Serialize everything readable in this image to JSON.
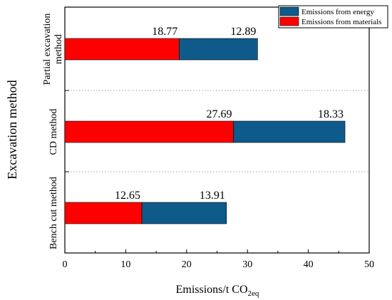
{
  "chart_data": {
    "type": "bar",
    "orientation": "horizontal",
    "stacked": true,
    "categories": [
      "Partial excavation method",
      "CD method",
      "Bench cut method"
    ],
    "category_label_lines": [
      [
        "Partial excavation",
        "method"
      ],
      [
        "CD method"
      ],
      [
        "Bench cut method"
      ]
    ],
    "series": [
      {
        "name": "Emissions from materials",
        "color": "#ff0000",
        "values": [
          18.77,
          27.69,
          12.65
        ]
      },
      {
        "name": "Emissions from energy",
        "color": "#0e5a8a",
        "values": [
          12.89,
          18.33,
          13.91
        ]
      }
    ],
    "legend_order": [
      "Emissions from energy",
      "Emissions from materials"
    ],
    "legend_position": "top-right",
    "xlabel": "Emissions/t CO",
    "xlabel_subscript": "2eq",
    "ylabel": "Excavation method",
    "xlim": [
      0,
      50
    ],
    "xticks": [
      "0",
      "10",
      "20",
      "30",
      "40",
      "50"
    ],
    "grid": false,
    "category_separators": "dotted"
  }
}
